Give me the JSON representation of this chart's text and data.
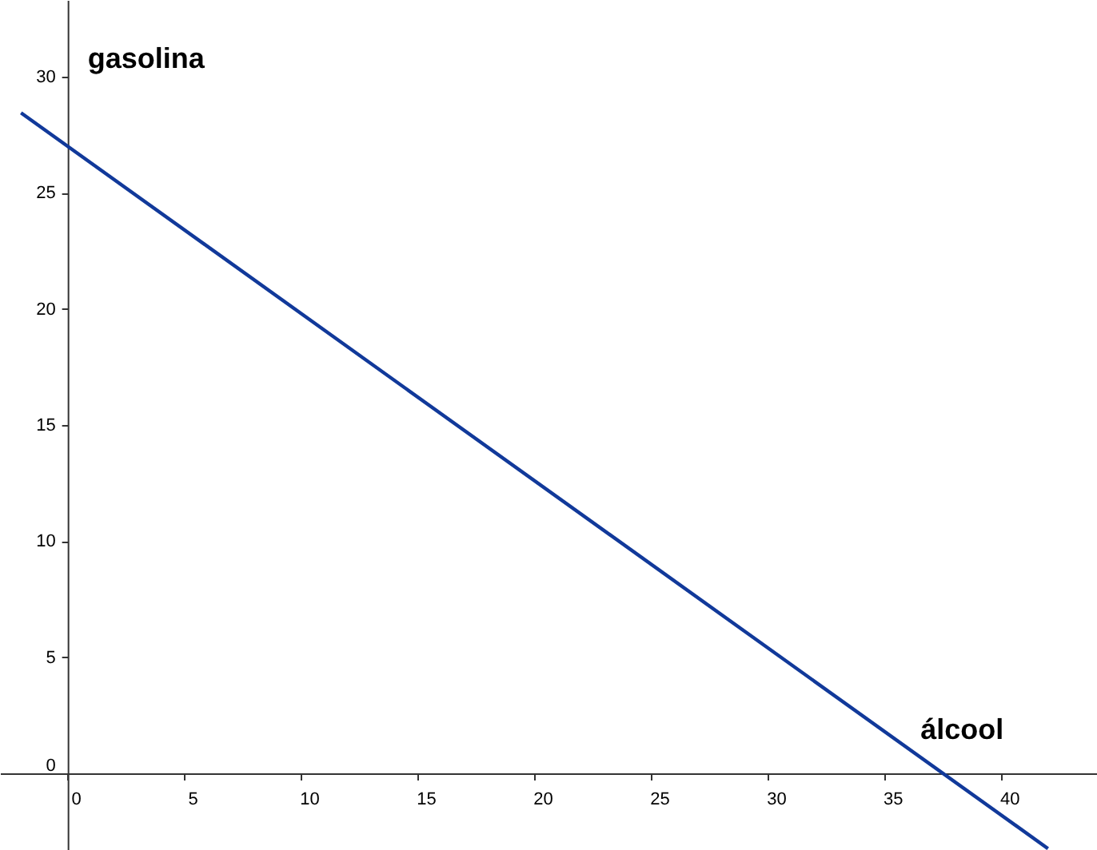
{
  "chart_data": {
    "type": "line",
    "xlabel": "álcool",
    "ylabel": "gasolina",
    "x": [
      -2,
      42
    ],
    "series": [
      {
        "color": "#11399a",
        "values": [
          28.44,
          -3.24
        ]
      }
    ],
    "xlim": [
      -2.9,
      44.1
    ],
    "ylim": [
      -3.3,
      33.3
    ],
    "xticks": [
      0,
      5,
      10,
      15,
      20,
      25,
      30,
      35,
      40
    ],
    "yticks": [
      0,
      5,
      10,
      15,
      20,
      25,
      30
    ],
    "grid": false,
    "marker": "none",
    "line_style": "solid"
  }
}
